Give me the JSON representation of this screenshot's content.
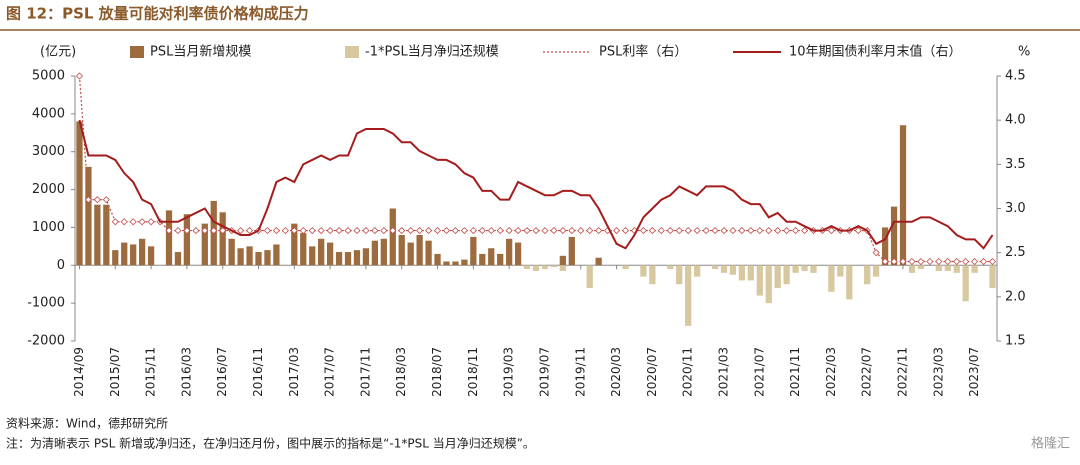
{
  "chart_data": {
    "type": "combo",
    "title": "图 12：PSL 放量可能对利率债价格构成压力",
    "y_label": "(亿元)",
    "y2_label": "%",
    "source": "资料来源：Wind，德邦研究所",
    "note": "注：为清晰表示 PSL 新增或净归还，在净归还月份，图中展示的指标是“-1*PSL 当月净归还规模”。",
    "watermark": "格隆汇",
    "categories": [
      "2014/09",
      null,
      null,
      null,
      "2015/07",
      null,
      null,
      null,
      "2015/11",
      null,
      null,
      null,
      "2016/03",
      null,
      null,
      null,
      "2016/07",
      null,
      null,
      null,
      "2016/11",
      null,
      null,
      null,
      "2017/03",
      null,
      null,
      null,
      "2017/07",
      null,
      null,
      null,
      "2017/11",
      null,
      null,
      null,
      "2018/03",
      null,
      null,
      null,
      "2018/07",
      null,
      null,
      null,
      "2018/11",
      null,
      null,
      null,
      "2019/03",
      null,
      null,
      null,
      "2019/07",
      null,
      null,
      null,
      "2019/11",
      null,
      null,
      null,
      "2020/03",
      null,
      null,
      null,
      "2020/07",
      null,
      null,
      null,
      "2020/11",
      null,
      null,
      null,
      "2021/03",
      null,
      null,
      null,
      "2021/07",
      null,
      null,
      null,
      "2021/11",
      null,
      null,
      null,
      "2022/03",
      null,
      null,
      null,
      "2022/07",
      null,
      null,
      null,
      "2022/11",
      null,
      null,
      null,
      "2023/03",
      null,
      null,
      null,
      "2023/07",
      null,
      null
    ],
    "series": [
      {
        "name": "PSL当月新增规模",
        "type": "bar",
        "color": "#9c6b3e",
        "values": [
          3800,
          2600,
          1600,
          1600,
          400,
          600,
          550,
          700,
          500,
          0,
          1450,
          350,
          1350,
          0,
          1100,
          1700,
          1400,
          700,
          450,
          500,
          350,
          400,
          550,
          0,
          1100,
          850,
          500,
          700,
          600,
          350,
          350,
          400,
          450,
          650,
          700,
          1500,
          800,
          600,
          800,
          650,
          300,
          100,
          100,
          150,
          750,
          300,
          450,
          300,
          700,
          600,
          0,
          0,
          0,
          0,
          250,
          750,
          0,
          0,
          200,
          0,
          0,
          0,
          0,
          0,
          0,
          0,
          0,
          0,
          0,
          0,
          0,
          0,
          0,
          0,
          0,
          0,
          0,
          0,
          0,
          0,
          0,
          0,
          0,
          0,
          0,
          0,
          0,
          0,
          0,
          0,
          1000,
          1550,
          3700,
          0,
          0,
          0,
          0,
          0,
          0,
          0,
          0,
          0,
          0
        ]
      },
      {
        "name": "-1*PSL当月净归还规模",
        "type": "bar",
        "color": "#d8c8a0",
        "values": [
          0,
          0,
          0,
          0,
          0,
          0,
          0,
          0,
          0,
          0,
          0,
          0,
          0,
          0,
          0,
          0,
          0,
          0,
          0,
          0,
          0,
          0,
          0,
          0,
          0,
          0,
          0,
          0,
          0,
          0,
          0,
          0,
          0,
          0,
          0,
          0,
          0,
          0,
          0,
          0,
          0,
          0,
          0,
          0,
          0,
          0,
          0,
          0,
          0,
          0,
          -100,
          -150,
          -100,
          -50,
          -150,
          0,
          0,
          -600,
          0,
          0,
          0,
          -100,
          0,
          -300,
          -500,
          0,
          -100,
          -500,
          -1600,
          -300,
          0,
          -100,
          -200,
          -250,
          -400,
          -400,
          -800,
          -1000,
          -600,
          -500,
          -200,
          -150,
          -200,
          0,
          -700,
          -300,
          -900,
          0,
          -500,
          -300,
          0,
          0,
          0,
          -200,
          -100,
          0,
          -150,
          -150,
          -200,
          -950,
          -200,
          0,
          -600
        ]
      },
      {
        "name": "PSL利率（右）",
        "type": "dotted",
        "color": "#c0504d",
        "axis": "y2",
        "values": [
          4.5,
          3.1,
          3.1,
          3.1,
          2.85,
          2.85,
          2.85,
          2.85,
          2.85,
          2.85,
          2.75,
          2.75,
          2.75,
          2.75,
          2.75,
          2.75,
          2.75,
          2.75,
          2.75,
          2.75,
          2.75,
          2.75,
          2.75,
          2.75,
          2.75,
          2.75,
          2.75,
          2.75,
          2.75,
          2.75,
          2.75,
          2.75,
          2.75,
          2.75,
          2.75,
          2.75,
          2.75,
          2.75,
          2.75,
          2.75,
          2.75,
          2.75,
          2.75,
          2.75,
          2.75,
          2.75,
          2.75,
          2.75,
          2.75,
          2.75,
          2.75,
          2.75,
          2.75,
          2.75,
          2.75,
          2.75,
          2.75,
          2.75,
          2.75,
          2.75,
          2.75,
          2.75,
          2.75,
          2.75,
          2.75,
          2.75,
          2.75,
          2.75,
          2.75,
          2.75,
          2.75,
          2.75,
          2.75,
          2.75,
          2.75,
          2.75,
          2.75,
          2.75,
          2.75,
          2.75,
          2.75,
          2.75,
          2.75,
          2.75,
          2.75,
          2.75,
          2.75,
          2.75,
          2.75,
          2.5,
          2.4,
          2.4,
          2.4,
          2.4,
          2.4,
          2.4,
          2.4,
          2.4,
          2.4,
          2.4,
          2.4,
          2.4,
          2.4
        ]
      },
      {
        "name": "10年期国债利率月末值（右）",
        "type": "line",
        "color": "#a51c1c",
        "axis": "y2",
        "values": [
          4.0,
          3.6,
          3.6,
          3.6,
          3.55,
          3.4,
          3.3,
          3.1,
          3.05,
          2.85,
          2.85,
          2.85,
          2.9,
          2.95,
          3.0,
          2.85,
          2.8,
          2.75,
          2.7,
          2.7,
          2.75,
          3.0,
          3.3,
          3.35,
          3.3,
          3.5,
          3.55,
          3.6,
          3.55,
          3.6,
          3.6,
          3.85,
          3.9,
          3.9,
          3.9,
          3.85,
          3.75,
          3.75,
          3.65,
          3.6,
          3.55,
          3.55,
          3.5,
          3.4,
          3.35,
          3.2,
          3.2,
          3.1,
          3.1,
          3.3,
          3.25,
          3.2,
          3.15,
          3.15,
          3.2,
          3.2,
          3.15,
          3.15,
          3.0,
          2.8,
          2.6,
          2.55,
          2.7,
          2.9,
          3.0,
          3.1,
          3.15,
          3.25,
          3.2,
          3.15,
          3.25,
          3.25,
          3.25,
          3.2,
          3.1,
          3.05,
          3.05,
          2.9,
          2.95,
          2.85,
          2.85,
          2.8,
          2.75,
          2.75,
          2.8,
          2.75,
          2.75,
          2.8,
          2.75,
          2.6,
          2.65,
          2.85,
          2.85,
          2.85,
          2.9,
          2.9,
          2.85,
          2.8,
          2.7,
          2.65,
          2.65,
          2.55,
          2.7
        ]
      }
    ],
    "ylim": [
      -2000,
      5000
    ],
    "yticks": [
      -2000,
      -1000,
      0,
      1000,
      2000,
      3000,
      4000,
      5000
    ],
    "y2lim": [
      1.5,
      4.5
    ],
    "y2ticks": [
      1.5,
      {
        "value": 2,
        "label": "2.0"
      },
      2.5,
      {
        "value": 3,
        "label": "3.0"
      },
      3.5,
      {
        "value": 4,
        "label": "4.0"
      },
      4.5
    ]
  }
}
